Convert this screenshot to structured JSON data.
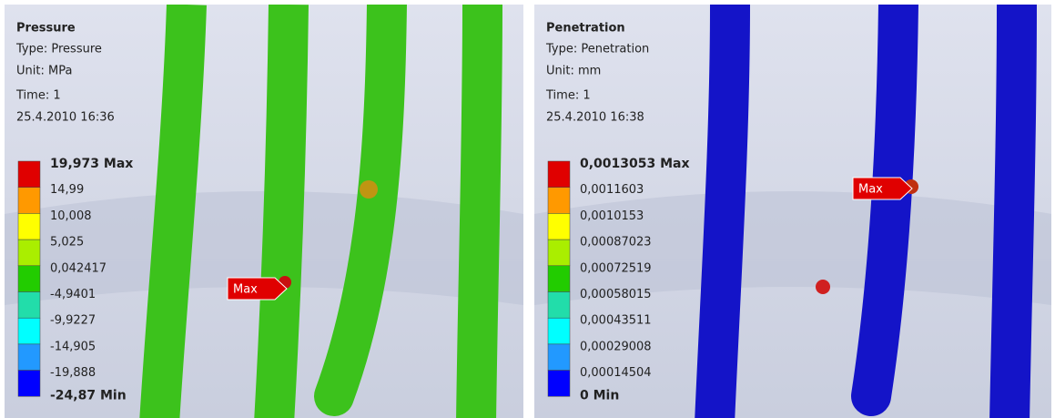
{
  "panels": [
    {
      "title": "Pressure",
      "type": "Type: Pressure",
      "unit": "Unit: MPa",
      "time": "Time: 1",
      "date": "25.4.2010 16:36",
      "legend": [
        "19,973 Max",
        "14,99",
        "10,008",
        "5,025",
        "0,042417",
        "-4,9401",
        "-9,9227",
        "-14,905",
        "-19,888",
        "-24,87 Min"
      ],
      "max_label": "Max"
    },
    {
      "title": "Penetration",
      "type": "Type: Penetration",
      "unit": "Unit: mm",
      "time": "Time: 1",
      "date": "25.4.2010 16:38",
      "legend": [
        "0,0013053 Max",
        "0,0011603",
        "0,0010153",
        "0,00087023",
        "0,00072519",
        "0,00058015",
        "0,00043511",
        "0,00029008",
        "0,00014504",
        "0 Min"
      ],
      "max_label": "Max"
    }
  ]
}
